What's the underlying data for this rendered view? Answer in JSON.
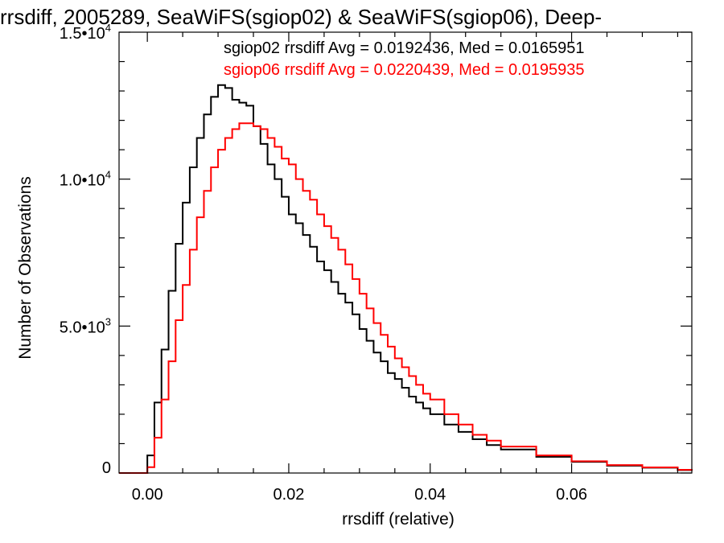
{
  "chart_data": {
    "type": "line",
    "title": "rrsdiff, 2005289, SeaWiFS(sgiop02) & SeaWiFS(sgiop06), Deep-",
    "xlabel": "rrsdiff (relative)",
    "ylabel": "Number of Observations",
    "xlim": [
      -0.004,
      0.077
    ],
    "ylim": [
      0,
      15000
    ],
    "x_ticks": [
      0.0,
      0.02,
      0.04,
      0.06
    ],
    "x_tick_labels": [
      "0.00",
      "0.02",
      "0.04",
      "0.06"
    ],
    "y_ticks": [
      0,
      5000,
      10000,
      15000
    ],
    "y_tick_labels": [
      {
        "text": "0",
        "base": "",
        "exp": ""
      },
      {
        "text": "",
        "base": "5.0•10",
        "exp": "3"
      },
      {
        "text": "",
        "base": "1.0•10",
        "exp": "4"
      },
      {
        "text": "",
        "base": "1.5•10",
        "exp": "4"
      }
    ],
    "grid": false,
    "step": true,
    "legend_position": "top-right",
    "annotations": [
      {
        "text": "sgiop02 rrsdiff Avg = 0.0192436, Med = 0.0165951",
        "color": "#000000"
      },
      {
        "text": "sgiop06 rrsdiff Avg = 0.0220439, Med = 0.0195935",
        "color": "#ff0000"
      }
    ],
    "series": [
      {
        "color": "#000000",
        "x": [
          -0.004,
          -0.001,
          0.0,
          0.001,
          0.002,
          0.003,
          0.004,
          0.005,
          0.006,
          0.007,
          0.008,
          0.009,
          0.01,
          0.011,
          0.012,
          0.013,
          0.014,
          0.015,
          0.016,
          0.017,
          0.018,
          0.019,
          0.02,
          0.021,
          0.022,
          0.023,
          0.024,
          0.025,
          0.026,
          0.027,
          0.028,
          0.029,
          0.03,
          0.031,
          0.032,
          0.033,
          0.034,
          0.035,
          0.036,
          0.037,
          0.038,
          0.039,
          0.04,
          0.042,
          0.044,
          0.046,
          0.048,
          0.05,
          0.055,
          0.06,
          0.065,
          0.07,
          0.075,
          0.077
        ],
        "y": [
          0,
          0,
          600,
          2400,
          4200,
          6200,
          7800,
          9200,
          10400,
          11400,
          12200,
          12800,
          13200,
          13100,
          12700,
          12600,
          12500,
          11800,
          11200,
          10500,
          10000,
          9400,
          8800,
          8500,
          8100,
          7700,
          7200,
          6900,
          6500,
          6100,
          5800,
          5400,
          4900,
          4500,
          4100,
          3800,
          3400,
          3200,
          2900,
          2600,
          2400,
          2200,
          2000,
          1650,
          1400,
          1150,
          950,
          800,
          550,
          380,
          250,
          180,
          100,
          80
        ]
      },
      {
        "color": "#ff0000",
        "x": [
          -0.004,
          0.0,
          0.001,
          0.002,
          0.003,
          0.004,
          0.005,
          0.006,
          0.007,
          0.008,
          0.009,
          0.01,
          0.011,
          0.012,
          0.013,
          0.014,
          0.015,
          0.016,
          0.017,
          0.018,
          0.019,
          0.02,
          0.021,
          0.022,
          0.023,
          0.024,
          0.025,
          0.026,
          0.027,
          0.028,
          0.029,
          0.03,
          0.031,
          0.032,
          0.033,
          0.034,
          0.035,
          0.036,
          0.037,
          0.038,
          0.039,
          0.04,
          0.042,
          0.044,
          0.046,
          0.048,
          0.05,
          0.055,
          0.06,
          0.065,
          0.07,
          0.075,
          0.077
        ],
        "y": [
          0,
          200,
          1200,
          2500,
          3800,
          5200,
          6400,
          7600,
          8700,
          9600,
          10400,
          11000,
          11400,
          11700,
          11900,
          11900,
          11800,
          11700,
          11400,
          11100,
          10700,
          10500,
          10000,
          9600,
          9300,
          8800,
          8400,
          8000,
          7600,
          7100,
          6600,
          6100,
          5600,
          5100,
          4700,
          4300,
          3900,
          3600,
          3300,
          3000,
          2700,
          2500,
          2000,
          1650,
          1300,
          1100,
          900,
          600,
          400,
          270,
          190,
          110,
          80
        ]
      }
    ]
  }
}
